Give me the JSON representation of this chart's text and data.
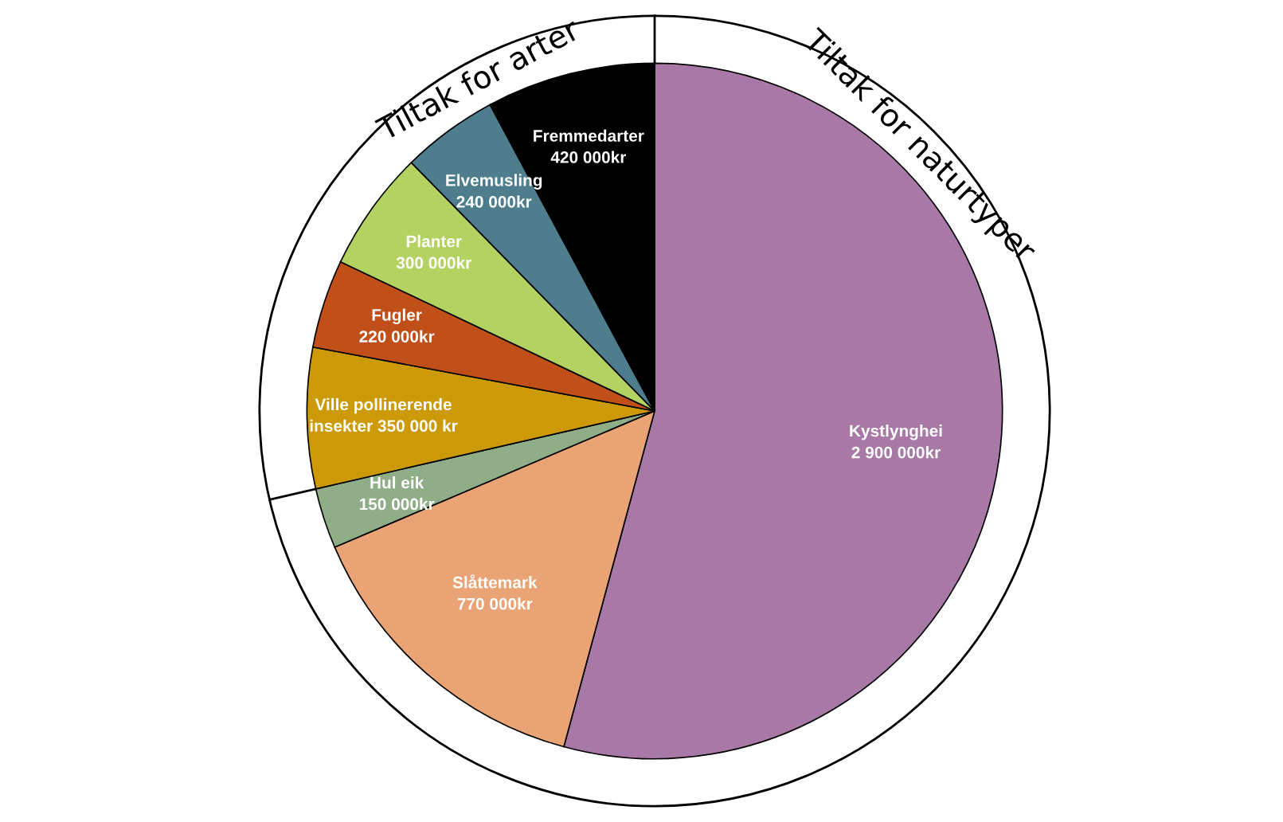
{
  "chart_data": {
    "type": "pie",
    "categories": [
      "Kystlynghei",
      "Slåttemark",
      "Hul eik",
      "Ville pollinerende insekter",
      "Fugler",
      "Planter",
      "Elvemusling",
      "Fremmedarter"
    ],
    "values": [
      2900000,
      770000,
      150000,
      350000,
      220000,
      300000,
      240000,
      420000
    ],
    "value_labels": [
      "2 900 000kr",
      "770 000kr",
      "150 000kr",
      "350 000 kr",
      "220 000kr",
      "300 000kr",
      "240 000kr",
      "420 000kr"
    ],
    "colors": [
      "#a878a6",
      "#e9a374",
      "#8fae87",
      "#cc9a06",
      "#c04f1a",
      "#b3d262",
      "#4e7e8e",
      "#000000"
    ],
    "annotations": [
      "Tiltak for naturtyper",
      "Tiltak for arter"
    ],
    "legend": false
  }
}
